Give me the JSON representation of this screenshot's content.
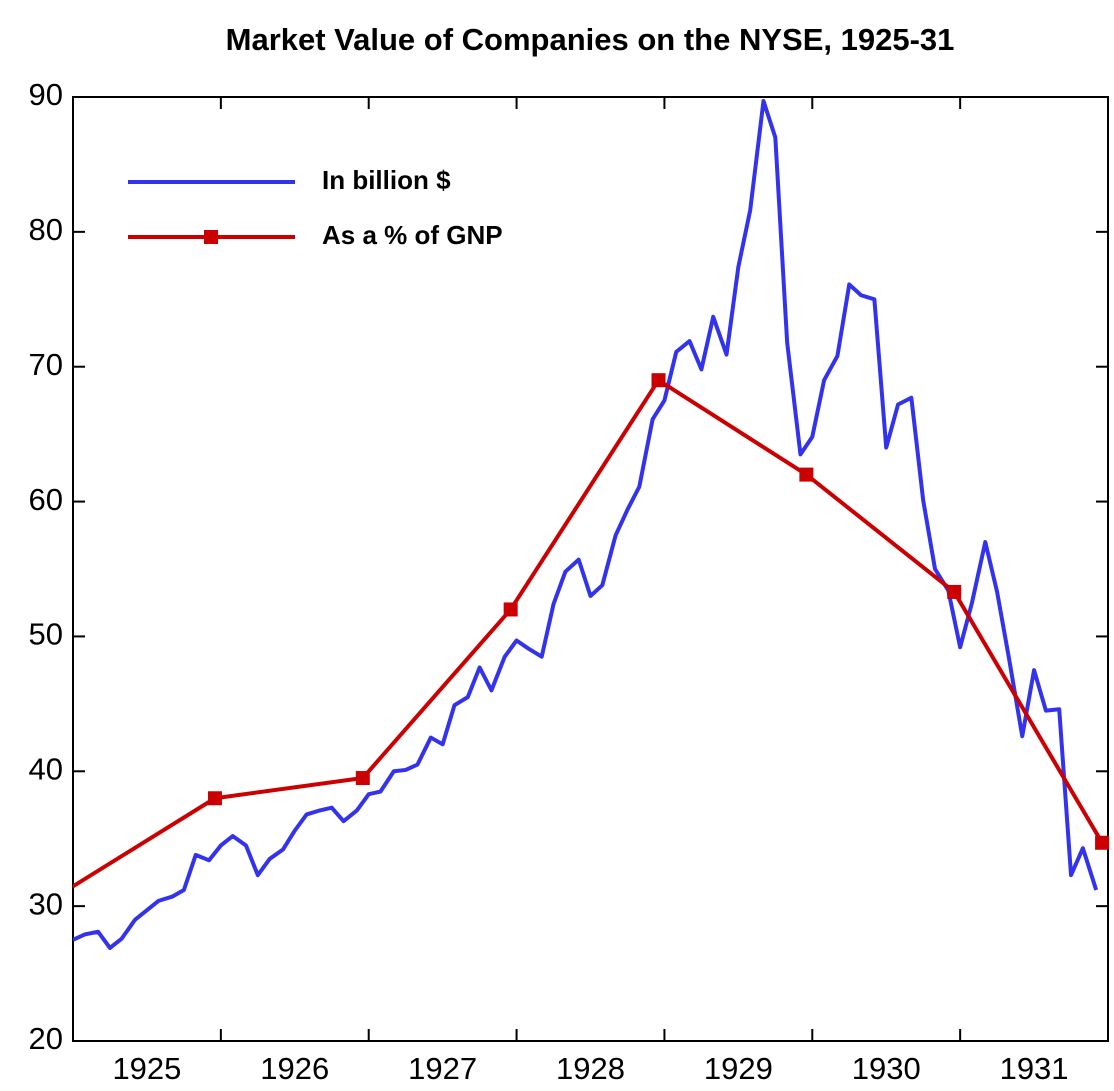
{
  "chart_data": {
    "type": "line",
    "title": "Market Value of Companies on the NYSE, 1925-31",
    "xlim": [
      1925,
      1932
    ],
    "xticks": [
      {
        "value": 1925.5,
        "label": "1925"
      },
      {
        "value": 1926.5,
        "label": "1926"
      },
      {
        "value": 1927.5,
        "label": "1927"
      },
      {
        "value": 1928.5,
        "label": "1928"
      },
      {
        "value": 1929.5,
        "label": "1929"
      },
      {
        "value": 1930.5,
        "label": "1930"
      },
      {
        "value": 1931.5,
        "label": "1931"
      }
    ],
    "xtick_marks": [
      1926,
      1927,
      1928,
      1929,
      1930,
      1931
    ],
    "ylim": [
      20,
      90
    ],
    "yticks": [
      20,
      30,
      40,
      50,
      60,
      70,
      80,
      90
    ],
    "legend": "upper left",
    "series": [
      {
        "name": "In billion $",
        "color": "#3333ee",
        "marker": false,
        "x": [
          1925,
          1925.08,
          1925.17,
          1925.25,
          1925.33,
          1925.42,
          1925.5,
          1925.58,
          1925.67,
          1925.75,
          1925.83,
          1925.92,
          1926,
          1926.08,
          1926.17,
          1926.25,
          1926.33,
          1926.42,
          1926.5,
          1926.58,
          1926.67,
          1926.75,
          1926.83,
          1926.92,
          1927,
          1927.08,
          1927.17,
          1927.25,
          1927.33,
          1927.42,
          1927.5,
          1927.58,
          1927.67,
          1927.75,
          1927.83,
          1927.92,
          1928,
          1928.08,
          1928.17,
          1928.25,
          1928.33,
          1928.42,
          1928.5,
          1928.58,
          1928.67,
          1928.75,
          1928.83,
          1928.92,
          1929,
          1929.08,
          1929.17,
          1929.25,
          1929.33,
          1929.42,
          1929.5,
          1929.58,
          1929.67,
          1929.75,
          1929.83,
          1929.92,
          1930,
          1930.08,
          1930.17,
          1930.25,
          1930.33,
          1930.42,
          1930.5,
          1930.58,
          1930.67,
          1930.75,
          1930.83,
          1930.92,
          1931,
          1931.08,
          1931.17,
          1931.25,
          1931.33,
          1931.42,
          1931.5,
          1931.58,
          1931.67,
          1931.75,
          1931.83,
          1931.92
        ],
        "values": [
          27.5,
          27.9,
          28.1,
          26.9,
          27.6,
          29.0,
          29.7,
          30.4,
          30.7,
          31.2,
          33.8,
          33.4,
          34.5,
          35.2,
          34.5,
          32.3,
          33.5,
          34.2,
          35.6,
          36.8,
          37.1,
          37.3,
          36.3,
          37.1,
          38.3,
          38.5,
          40.0,
          40.1,
          40.5,
          42.5,
          42.0,
          44.9,
          45.5,
          47.7,
          46.0,
          48.5,
          49.7,
          49.1,
          48.5,
          52.4,
          54.8,
          55.7,
          53.0,
          53.8,
          57.5,
          59.4,
          61.1,
          66.1,
          67.5,
          71.1,
          71.9,
          69.8,
          73.7,
          70.9,
          77.4,
          81.6,
          89.7,
          87.0,
          71.8,
          63.5,
          64.8,
          69.0,
          70.8,
          76.1,
          75.3,
          75.0,
          64.0,
          67.2,
          67.7,
          60.1,
          55.0,
          53.4,
          49.2,
          52.5,
          57.0,
          53.3,
          48.4,
          42.6,
          47.5,
          44.5,
          44.6,
          32.3,
          34.3,
          31.2
        ]
      },
      {
        "name": "As a % of GNP",
        "color": "#cc0000",
        "marker": true,
        "x": [
          1924.96,
          1925.96,
          1926.96,
          1927.96,
          1928.96,
          1929.96,
          1930.96,
          1931.96
        ],
        "values": [
          31.2,
          38,
          39.5,
          52,
          69,
          62,
          53.3,
          34.7
        ]
      }
    ]
  }
}
